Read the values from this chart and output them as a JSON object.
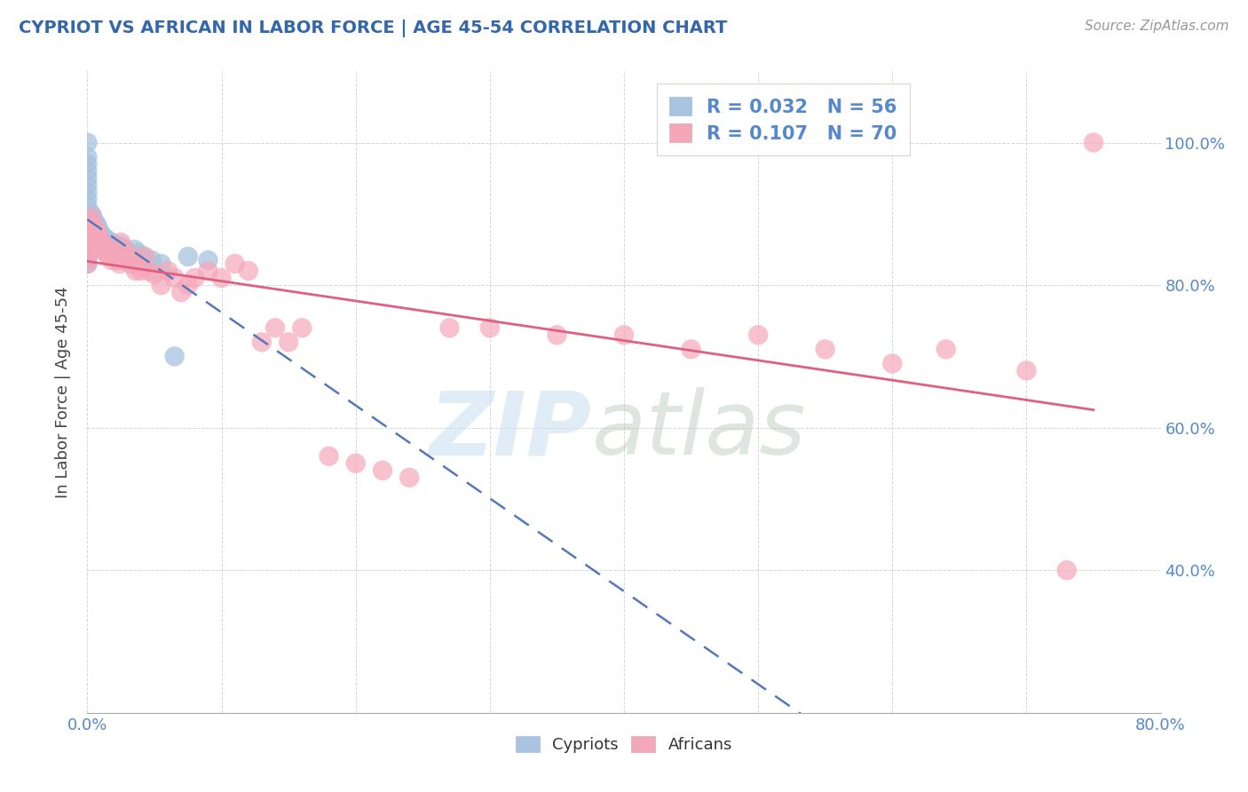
{
  "title": "CYPRIOT VS AFRICAN IN LABOR FORCE | AGE 45-54 CORRELATION CHART",
  "source_text": "Source: ZipAtlas.com",
  "ylabel": "In Labor Force | Age 45-54",
  "xlim": [
    0.0,
    0.8
  ],
  "ylim": [
    0.2,
    1.1
  ],
  "legend_r_cypriot": "0.032",
  "legend_n_cypriot": "56",
  "legend_r_african": "0.107",
  "legend_n_african": "70",
  "cypriot_color": "#a8c4e0",
  "african_color": "#f4a7b9",
  "trendline_cypriot_color": "#5577bb",
  "trendline_african_color": "#e06080",
  "background_color": "#ffffff",
  "cypriot_x": [
    0.0,
    0.0,
    0.0,
    0.0,
    0.0,
    0.0,
    0.0,
    0.0,
    0.0,
    0.0,
    0.0,
    0.0,
    0.0,
    0.0,
    0.0,
    0.0,
    0.0,
    0.0,
    0.0,
    0.0,
    0.003,
    0.003,
    0.003,
    0.004,
    0.004,
    0.005,
    0.006,
    0.006,
    0.007,
    0.007,
    0.008,
    0.008,
    0.009,
    0.01,
    0.01,
    0.011,
    0.012,
    0.013,
    0.014,
    0.015,
    0.016,
    0.017,
    0.018,
    0.02,
    0.022,
    0.025,
    0.028,
    0.03,
    0.035,
    0.038,
    0.042,
    0.048,
    0.055,
    0.065,
    0.075,
    0.09
  ],
  "cypriot_y": [
    1.0,
    0.98,
    0.97,
    0.96,
    0.95,
    0.94,
    0.93,
    0.92,
    0.91,
    0.9,
    0.89,
    0.88,
    0.87,
    0.86,
    0.855,
    0.85,
    0.845,
    0.84,
    0.835,
    0.83,
    0.9,
    0.89,
    0.88,
    0.895,
    0.885,
    0.89,
    0.88,
    0.87,
    0.885,
    0.875,
    0.88,
    0.87,
    0.875,
    0.87,
    0.86,
    0.87,
    0.865,
    0.86,
    0.865,
    0.86,
    0.855,
    0.85,
    0.86,
    0.855,
    0.85,
    0.855,
    0.85,
    0.845,
    0.85,
    0.845,
    0.84,
    0.835,
    0.83,
    0.7,
    0.84,
    0.835
  ],
  "african_x": [
    0.0,
    0.0,
    0.0,
    0.0,
    0.0,
    0.0,
    0.0,
    0.003,
    0.004,
    0.005,
    0.006,
    0.007,
    0.008,
    0.008,
    0.009,
    0.01,
    0.01,
    0.011,
    0.012,
    0.013,
    0.014,
    0.015,
    0.016,
    0.017,
    0.018,
    0.02,
    0.022,
    0.024,
    0.025,
    0.027,
    0.029,
    0.03,
    0.032,
    0.034,
    0.036,
    0.038,
    0.04,
    0.043,
    0.046,
    0.05,
    0.055,
    0.06,
    0.065,
    0.07,
    0.075,
    0.08,
    0.09,
    0.1,
    0.11,
    0.12,
    0.13,
    0.14,
    0.15,
    0.16,
    0.18,
    0.2,
    0.22,
    0.24,
    0.27,
    0.3,
    0.35,
    0.4,
    0.45,
    0.5,
    0.55,
    0.6,
    0.64,
    0.7,
    0.73,
    0.75
  ],
  "african_y": [
    0.89,
    0.88,
    0.87,
    0.86,
    0.85,
    0.84,
    0.83,
    0.895,
    0.885,
    0.88,
    0.87,
    0.875,
    0.87,
    0.86,
    0.865,
    0.86,
    0.85,
    0.855,
    0.85,
    0.855,
    0.845,
    0.85,
    0.84,
    0.845,
    0.835,
    0.84,
    0.835,
    0.83,
    0.86,
    0.85,
    0.84,
    0.835,
    0.83,
    0.84,
    0.82,
    0.83,
    0.82,
    0.84,
    0.82,
    0.815,
    0.8,
    0.82,
    0.81,
    0.79,
    0.8,
    0.81,
    0.82,
    0.81,
    0.83,
    0.82,
    0.72,
    0.74,
    0.72,
    0.74,
    0.56,
    0.55,
    0.54,
    0.53,
    0.74,
    0.74,
    0.73,
    0.73,
    0.71,
    0.73,
    0.71,
    0.69,
    0.71,
    0.68,
    0.4,
    1.0
  ]
}
